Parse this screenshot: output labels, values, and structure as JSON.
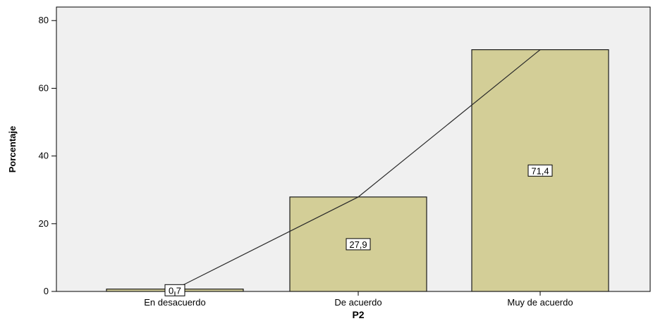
{
  "chart_data": {
    "type": "bar",
    "title": "",
    "xlabel": "P2",
    "ylabel": "Porcentaje",
    "categories": [
      "En desacuerdo",
      "De acuerdo",
      "Muy de acuerdo"
    ],
    "values": [
      0.7,
      27.9,
      71.4
    ],
    "data_labels": [
      "0,7",
      "27,9",
      "71,4"
    ],
    "overlay_line": true,
    "ylim": [
      0,
      84
    ],
    "yticks": [
      0,
      20,
      40,
      60,
      80
    ],
    "grid": false,
    "legend": "none",
    "colors": {
      "plot_background": "#f0f0f0",
      "bar_fill": "#d3ce97",
      "bar_stroke": "#1a1a1a",
      "line": "#2a2a2a"
    }
  }
}
